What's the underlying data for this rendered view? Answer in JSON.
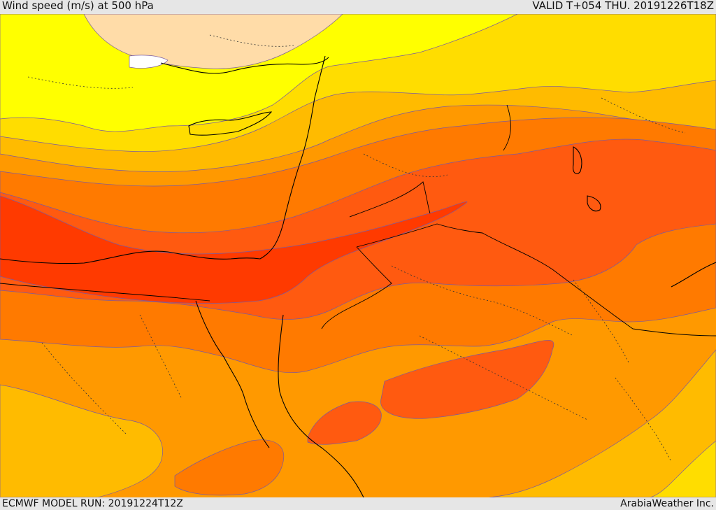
{
  "header": {
    "title": "Wind speed (m/s) at 500 hPa",
    "valid_time": "VALID T+054 THU. 20191226T18Z"
  },
  "footer": {
    "model_run": "ECMWF MODEL RUN: 20191224T12Z",
    "credit": "ArabiaWeather Inc."
  },
  "colors": {
    "white_band": "#ffffff",
    "pale_band": "#ffdca8",
    "yellow_band": "#ffff00",
    "gold_band": "#ffdd00",
    "amber_band": "#ffbb00",
    "orange_light_band": "#ff9900",
    "orange_band": "#ff7a00",
    "orange_red_band": "#ff5a10",
    "red_band": "#ff3a00",
    "contour_line": "#7a5aa0",
    "coastline": "#000000"
  }
}
